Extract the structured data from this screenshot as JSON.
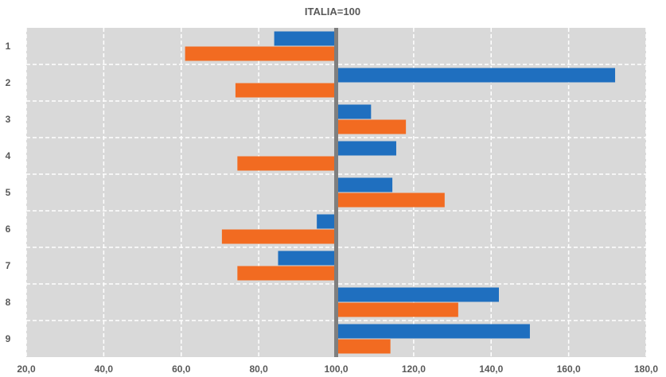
{
  "chart_data": {
    "type": "bar",
    "orientation": "horizontal",
    "title": "ITALIA=100",
    "xlabel": "",
    "ylabel": "",
    "xlim": [
      20,
      180
    ],
    "baseline": 100,
    "grid": true,
    "legend": "none",
    "categories": [
      "1",
      "2",
      "3",
      "4",
      "5",
      "6",
      "7",
      "8",
      "9"
    ],
    "series": [
      {
        "color": "#1f6fbf",
        "values": [
          84.0,
          172.0,
          109.0,
          115.5,
          114.5,
          95.0,
          85.0,
          142.0,
          150.0
        ]
      },
      {
        "color": "#f26b21",
        "values": [
          61.0,
          74.0,
          118.0,
          74.5,
          128.0,
          70.5,
          74.5,
          131.5,
          114.0
        ]
      }
    ],
    "x_ticks": [
      "20,0",
      "40,0",
      "60,0",
      "80,0",
      "100,0",
      "120,0",
      "140,0",
      "160,0",
      "180,0"
    ],
    "colors": {
      "plot_background": "#d9d9d9",
      "baseline": "#7f7f7f",
      "grid": "#ffffff"
    }
  }
}
